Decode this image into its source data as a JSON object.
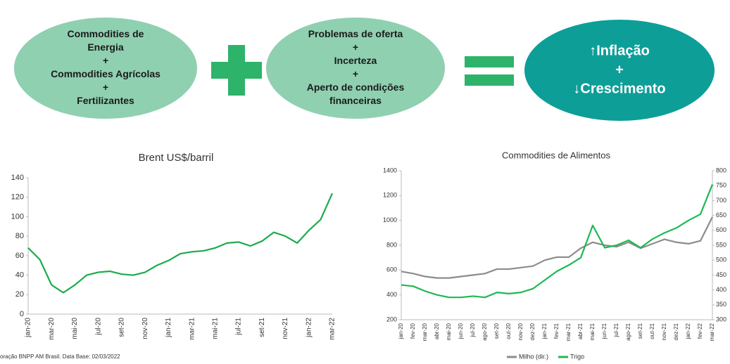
{
  "diagram": {
    "left": [
      "Commodities de",
      "Energia",
      "+",
      "Commodities Agrícolas",
      "+",
      "Fertilizantes"
    ],
    "middle": [
      "Problemas de oferta",
      "+",
      "Incerteza",
      "+",
      "Aperto de condições",
      "financeiras"
    ],
    "right": [
      "↑Inflação",
      "+",
      "↓Crescimento"
    ]
  },
  "chart_data": [
    {
      "type": "line",
      "title": "Brent US$/barril",
      "categories": [
        "jan-20",
        null,
        "mar-20",
        null,
        "mai-20",
        null,
        "jul-20",
        null,
        "set-20",
        null,
        "nov-20",
        null,
        "jan-21",
        null,
        "mar-21",
        null,
        "mai-21",
        null,
        "jul-21",
        null,
        "set-21",
        null,
        "nov-21",
        null,
        "jan-22",
        null,
        "mar-22"
      ],
      "series": [
        {
          "name": "Brent",
          "color": "#1aab4b",
          "values": [
            68,
            56,
            30,
            22,
            30,
            40,
            43,
            44,
            41,
            40,
            43,
            50,
            55,
            62,
            64,
            65,
            68,
            73,
            74,
            70,
            75,
            84,
            80,
            73,
            86,
            97,
            124
          ]
        }
      ],
      "ylim": [
        0,
        140
      ],
      "yticks": [
        0,
        20,
        40,
        60,
        80,
        100,
        120,
        140
      ],
      "grid": false
    },
    {
      "type": "line",
      "title": "Commodities de Alimentos",
      "categories": [
        "jan-20",
        "fev-20",
        "mar-20",
        "abr-20",
        "mai-20",
        "jun-20",
        "jul-20",
        "ago-20",
        "set-20",
        "out-20",
        "nov-20",
        "dez-20",
        "jan-21",
        "fev-21",
        "mar-21",
        "abr-21",
        "mai-21",
        "jun-21",
        "jul-21",
        "ago-21",
        "set-21",
        "out-21",
        "nov-21",
        "dez-21",
        "jan-22",
        "fev-22",
        "mar-22"
      ],
      "series": [
        {
          "name": "Milho (dir.)",
          "color": "#8c8c8c",
          "axis": "y2",
          "values": [
            462,
            455,
            445,
            440,
            440,
            445,
            450,
            455,
            470,
            470,
            475,
            480,
            500,
            510,
            510,
            540,
            560,
            550,
            545,
            560,
            540,
            555,
            570,
            560,
            555,
            565,
            645
          ]
        },
        {
          "name": "Trigo",
          "color": "#1db954",
          "values": [
            480,
            470,
            430,
            400,
            380,
            380,
            390,
            380,
            420,
            410,
            420,
            450,
            520,
            590,
            640,
            700,
            960,
            780,
            800,
            840,
            780,
            850,
            900,
            940,
            1000,
            1050,
            1290
          ]
        }
      ],
      "ylim": [
        200,
        1400
      ],
      "yticks": [
        200,
        400,
        600,
        800,
        1000,
        1200,
        1400
      ],
      "y2lim": [
        300,
        800
      ],
      "y2ticks": [
        300,
        350,
        400,
        450,
        500,
        550,
        600,
        650,
        700,
        750,
        800
      ],
      "grid": false
    }
  ],
  "source": "oração BNPP AM Brasil. Data Base: 02/03/2022"
}
